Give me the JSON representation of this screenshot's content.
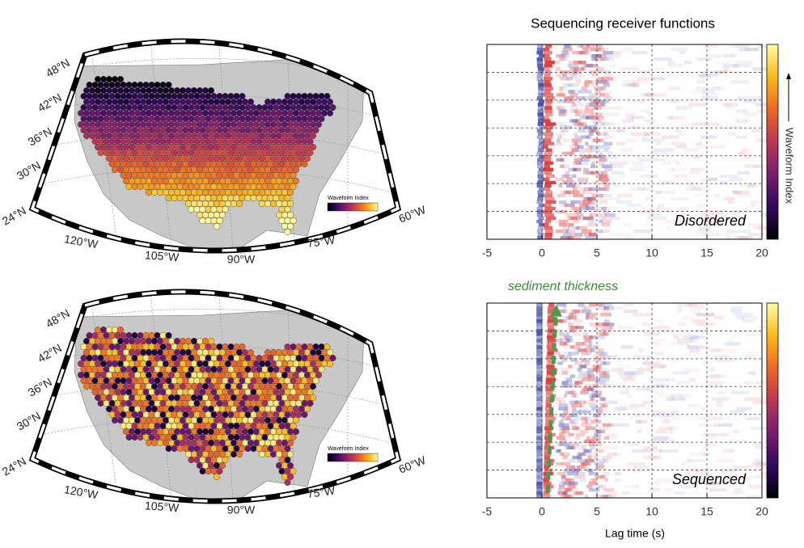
{
  "maps": [
    {
      "lat_labels": [
        "48°N",
        "42°N",
        "36°N",
        "30°N",
        "24°N"
      ],
      "lon_labels": [
        "120°W",
        "105°W",
        "90°W",
        "75°W",
        "60°W"
      ],
      "colorbar_label": "Waveform Index"
    },
    {
      "lat_labels": [
        "48°N",
        "42°N",
        "36°N",
        "30°N",
        "24°N"
      ],
      "lon_labels": [
        "120°W",
        "105°W",
        "90°W",
        "75°W",
        "60°W"
      ],
      "colorbar_label": "Waveform Index"
    }
  ],
  "title": "Sequencing receiver functions",
  "panels": [
    {
      "label": "Disordered",
      "xlim": [
        -5,
        20
      ],
      "xticks": [
        -5,
        0,
        5,
        10,
        15,
        20
      ]
    },
    {
      "label": "Sequenced",
      "annotation": "sediment thickness",
      "xlim": [
        -5,
        20
      ],
      "xticks": [
        -5,
        0,
        5,
        10,
        15,
        20
      ]
    }
  ],
  "colorbar_label": "Waveform Index",
  "xlabel": "Lag time (s)"
}
